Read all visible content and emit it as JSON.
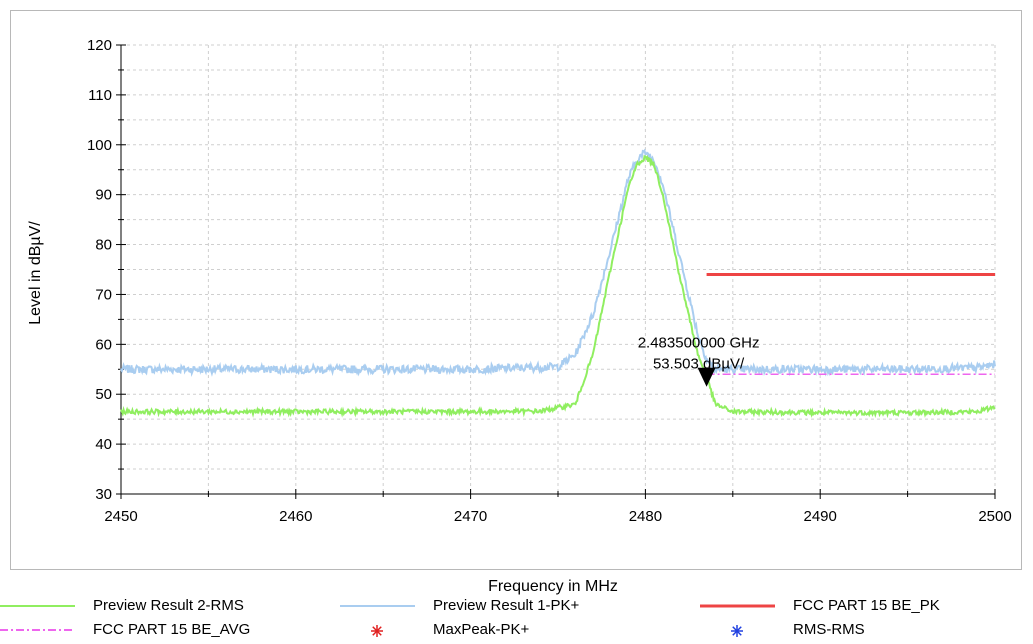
{
  "chart_data": {
    "type": "line",
    "title": "",
    "xlabel": "Frequency in MHz",
    "ylabel": "Level in dBµV/",
    "xlim": [
      2450,
      2500
    ],
    "ylim": [
      30,
      120
    ],
    "x_ticks": [
      "2450",
      "2460",
      "2470",
      "2480",
      "2490",
      "2500"
    ],
    "y_ticks": [
      "30",
      "40",
      "50",
      "60",
      "70",
      "80",
      "90",
      "100",
      "110",
      "120"
    ],
    "grid": true,
    "series": [
      {
        "name": "Preview Result 2-RMS",
        "color": "#90ee60",
        "x": [
          2450,
          2460,
          2470,
          2474,
          2476,
          2477,
          2478,
          2479,
          2479.5,
          2480,
          2480.5,
          2481,
          2482,
          2483,
          2483.5,
          2484,
          2485,
          2490,
          2495,
          2499,
          2500
        ],
        "values": [
          46.5,
          46.5,
          46.5,
          46.6,
          48,
          58,
          75,
          91,
          96,
          97.5,
          96,
          90,
          73,
          58,
          53.5,
          48,
          46.5,
          46.3,
          46.3,
          46.5,
          47.5
        ]
      },
      {
        "name": "Preview Result 1-PK+",
        "color": "#a9cdf0",
        "x": [
          2450,
          2460,
          2470,
          2475,
          2476,
          2477,
          2478,
          2479,
          2479.5,
          2480,
          2480.5,
          2481,
          2482,
          2483,
          2483.5,
          2484,
          2485,
          2490,
          2495,
          2499,
          2500
        ],
        "values": [
          55,
          55,
          55,
          55.5,
          58,
          66,
          79,
          93,
          97,
          98.5,
          97,
          92,
          77,
          62,
          57,
          55,
          55,
          55,
          55,
          55.3,
          56
        ]
      },
      {
        "name": "FCC PART 15 BE_PK",
        "color": "#ee4444",
        "x": [
          2483.5,
          2500
        ],
        "values": [
          74,
          74
        ]
      },
      {
        "name": "FCC PART 15 BE_AVG",
        "color": "#ee66ee",
        "x": [
          2483.5,
          2500
        ],
        "values": [
          54,
          54
        ]
      }
    ],
    "markers": [
      {
        "name": "MaxPeak-PK+",
        "color": "#e02020",
        "points": []
      },
      {
        "name": "RMS-RMS",
        "color": "#2040e0",
        "points": []
      }
    ],
    "annotation": {
      "x": 2483.5,
      "y": 53.503,
      "line1": "2.483500000 GHz",
      "line2": "53.503 dBµV/"
    },
    "legend": [
      {
        "label": "Preview Result 2-RMS",
        "style": "line",
        "color": "#90ee60"
      },
      {
        "label": "Preview Result 1-PK+",
        "style": "line",
        "color": "#a9cdf0"
      },
      {
        "label": "FCC PART 15 BE_PK",
        "style": "line",
        "color": "#ee4444"
      },
      {
        "label": "FCC PART 15 BE_AVG",
        "style": "dashdot",
        "color": "#ee66ee"
      },
      {
        "label": "MaxPeak-PK+",
        "style": "star",
        "color": "#e02020"
      },
      {
        "label": "RMS-RMS",
        "style": "star",
        "color": "#2040e0"
      }
    ],
    "legend_position": "bottom"
  }
}
